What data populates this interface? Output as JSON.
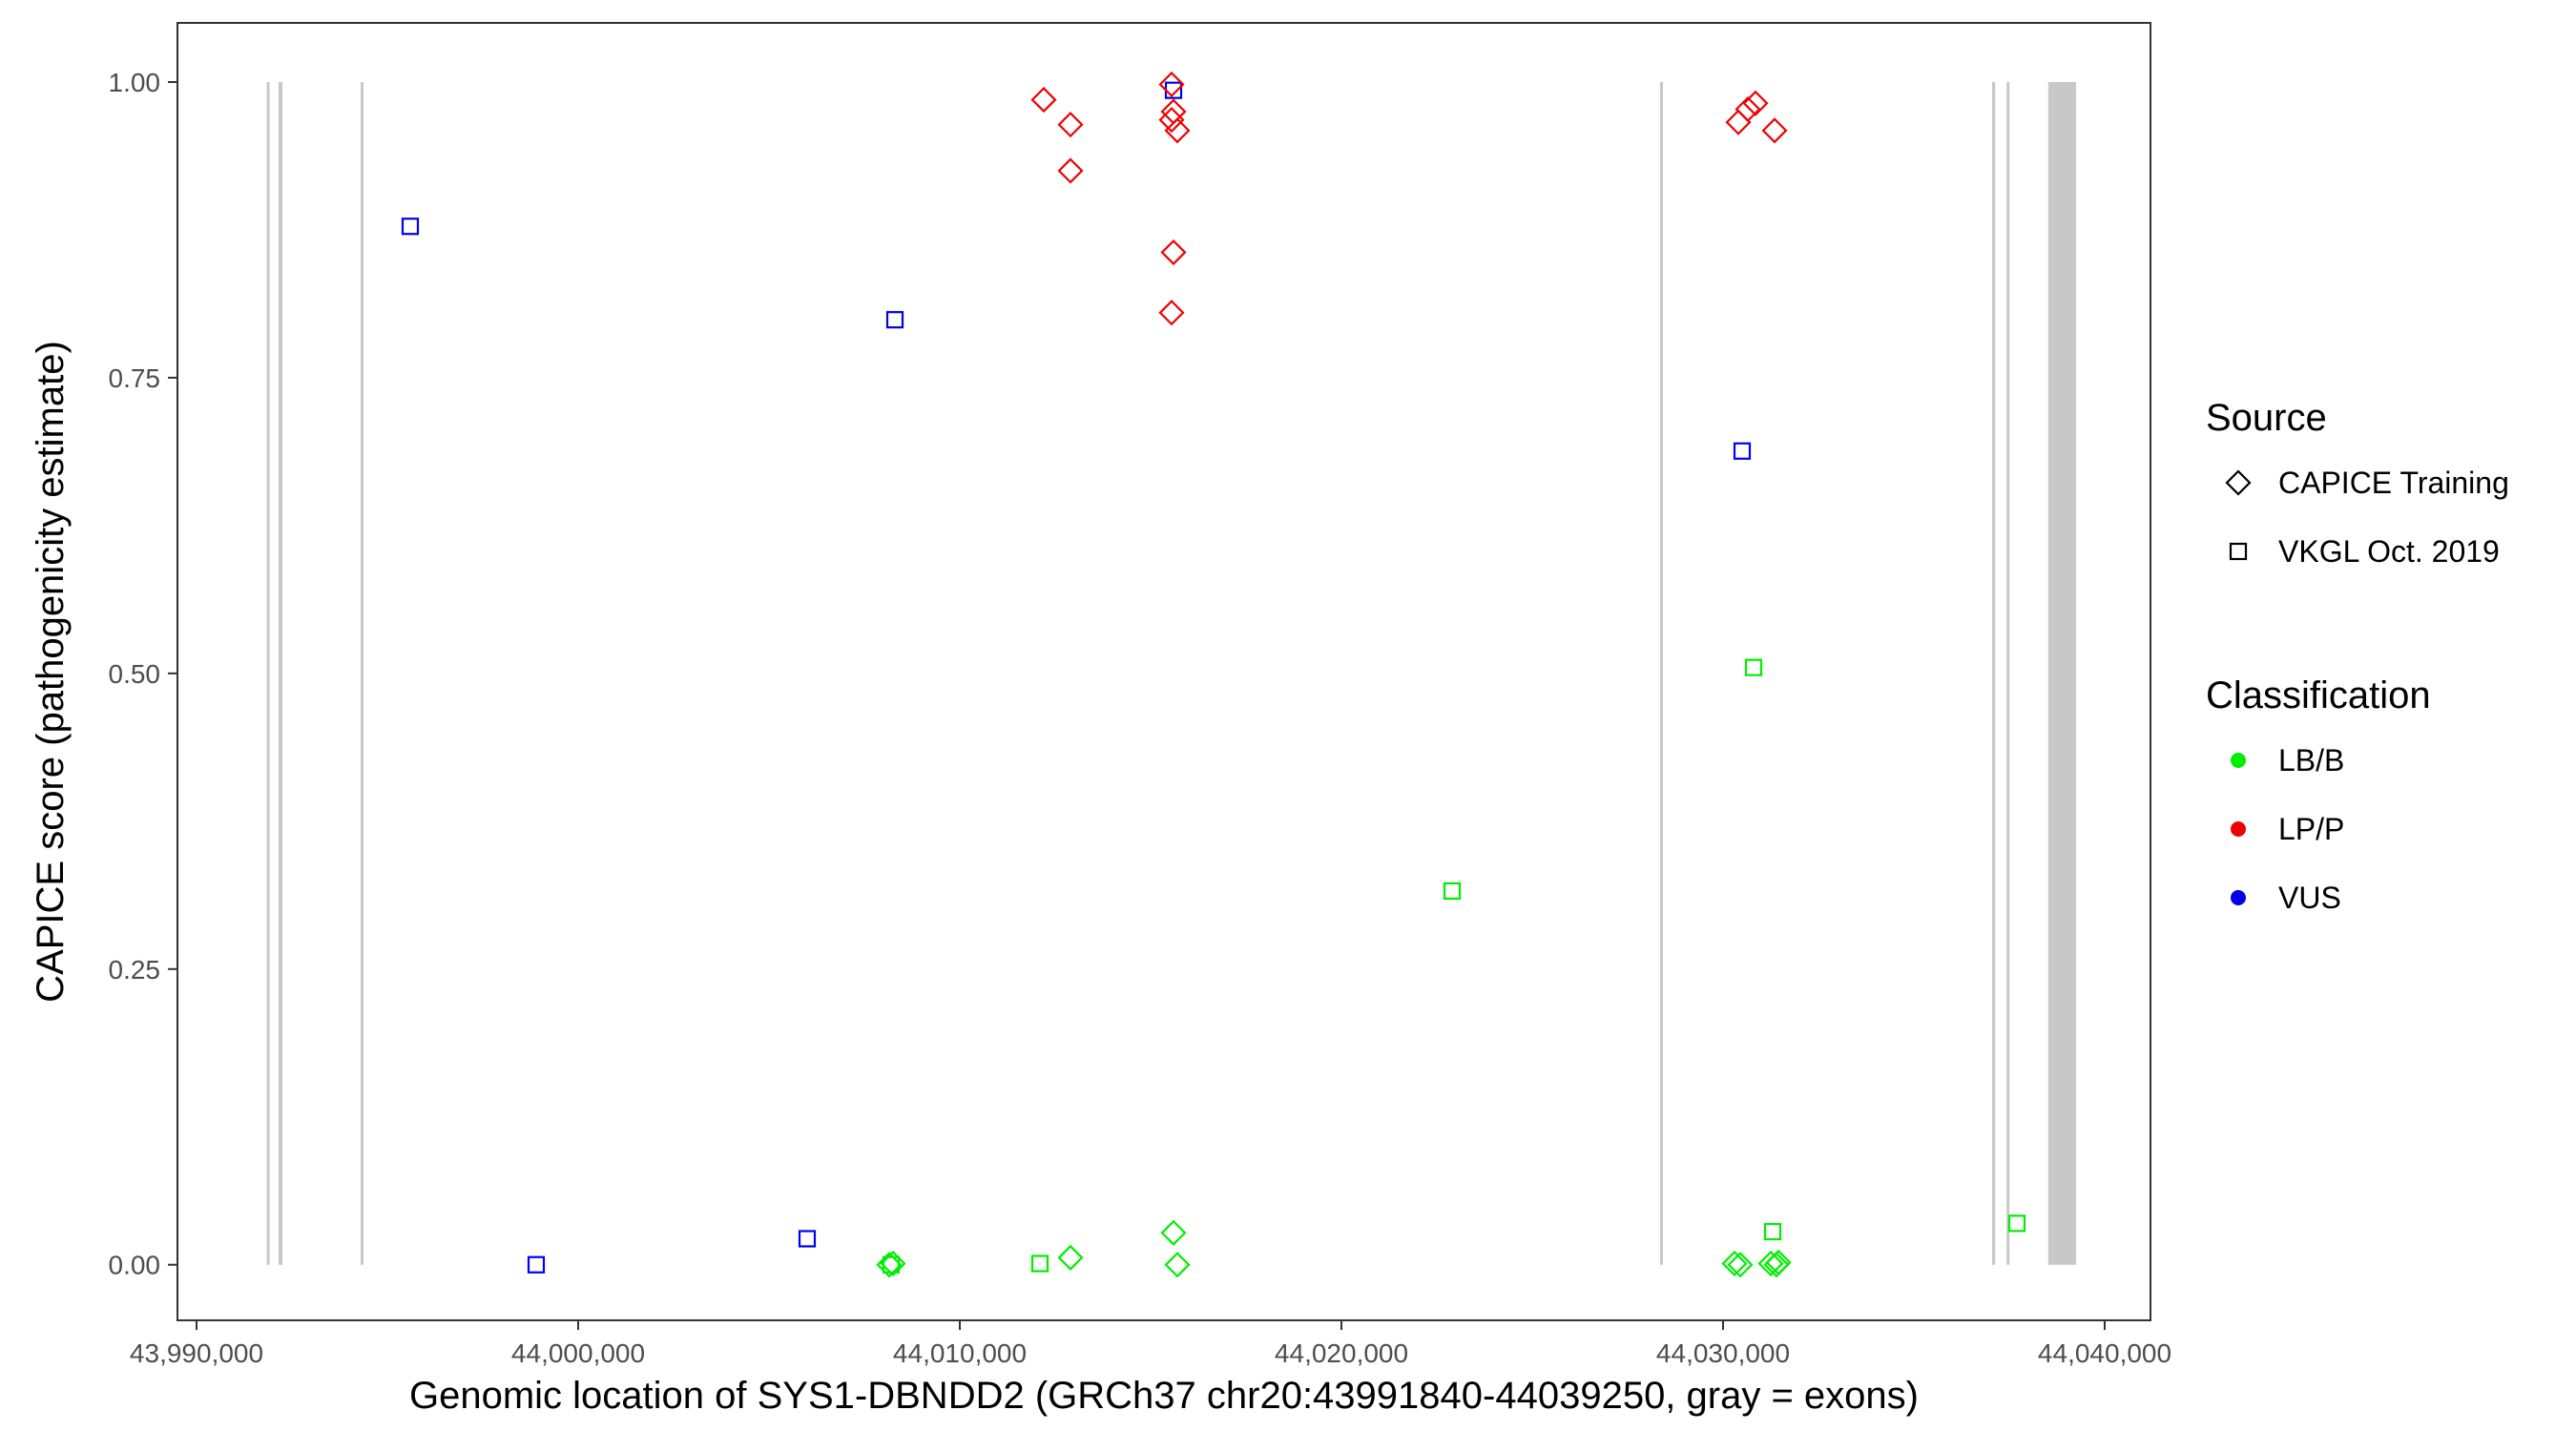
{
  "chart_data": {
    "type": "scatter",
    "xlabel": "Genomic location of SYS1-DBNDD2 (GRCh37 chr20:43991840-44039250, gray = exons)",
    "ylabel": "CAPICE score (pathogenicity estimate)",
    "xlim": [
      43989500,
      44041200
    ],
    "ylim": [
      -0.047,
      1.05
    ],
    "x_ticks": [
      43990000,
      44000000,
      44010000,
      44020000,
      44030000,
      44040000
    ],
    "x_tick_labels": [
      "43,990,000",
      "44,000,000",
      "44,010,000",
      "44,020,000",
      "44,030,000",
      "44,040,000"
    ],
    "y_ticks": [
      0,
      0.25,
      0.5,
      0.75,
      1.0
    ],
    "y_tick_labels": [
      "0.00",
      "0.25",
      "0.50",
      "0.75",
      "1.00"
    ],
    "grid": false,
    "exon_color": "#c8c8c8",
    "exons": [
      {
        "start": 43991840,
        "end": 43991900
      },
      {
        "start": 43992150,
        "end": 43992250
      },
      {
        "start": 43994300,
        "end": 43994360
      },
      {
        "start": 44028350,
        "end": 44028410
      },
      {
        "start": 44037050,
        "end": 44037130
      },
      {
        "start": 44037430,
        "end": 44037500
      },
      {
        "start": 44038520,
        "end": 44039250
      }
    ],
    "legend": {
      "position": "right",
      "source_title": "Source",
      "source_entries": [
        {
          "label": "CAPICE Training",
          "shape": "diamond"
        },
        {
          "label": "VKGL Oct. 2019",
          "shape": "square"
        }
      ],
      "classification_title": "Classification",
      "classification_entries": [
        {
          "label": "LB/B",
          "color": "#00ee00"
        },
        {
          "label": "LP/P",
          "color": "#ee0000"
        },
        {
          "label": "VUS",
          "color": "#0000ee"
        }
      ]
    },
    "series": [
      {
        "source": "VKGL Oct. 2019",
        "shape": "square",
        "points": [
          {
            "x": 43995600,
            "y": 0.878,
            "class": "VUS"
          },
          {
            "x": 43998900,
            "y": 0.0,
            "class": "VUS"
          },
          {
            "x": 44006000,
            "y": 0.022,
            "class": "VUS"
          },
          {
            "x": 44008300,
            "y": 0.799,
            "class": "VUS"
          },
          {
            "x": 44015600,
            "y": 0.993,
            "class": "VUS"
          },
          {
            "x": 44030500,
            "y": 0.688,
            "class": "VUS"
          },
          {
            "x": 44008200,
            "y": 0.0,
            "class": "LB/B"
          },
          {
            "x": 44012100,
            "y": 0.001,
            "class": "LB/B"
          },
          {
            "x": 44022900,
            "y": 0.316,
            "class": "LB/B"
          },
          {
            "x": 44030800,
            "y": 0.505,
            "class": "LB/B"
          },
          {
            "x": 44031300,
            "y": 0.028,
            "class": "LB/B"
          },
          {
            "x": 44037700,
            "y": 0.035,
            "class": "LB/B"
          }
        ]
      },
      {
        "source": "CAPICE Training",
        "shape": "diamond",
        "points": [
          {
            "x": 44012200,
            "y": 0.985,
            "class": "LP/P"
          },
          {
            "x": 44012900,
            "y": 0.964,
            "class": "LP/P"
          },
          {
            "x": 44012900,
            "y": 0.925,
            "class": "LP/P"
          },
          {
            "x": 44015550,
            "y": 0.998,
            "class": "LP/P"
          },
          {
            "x": 44015600,
            "y": 0.975,
            "class": "LP/P"
          },
          {
            "x": 44015550,
            "y": 0.968,
            "class": "LP/P"
          },
          {
            "x": 44015700,
            "y": 0.959,
            "class": "LP/P"
          },
          {
            "x": 44015600,
            "y": 0.856,
            "class": "LP/P"
          },
          {
            "x": 44015550,
            "y": 0.805,
            "class": "LP/P"
          },
          {
            "x": 44030400,
            "y": 0.966,
            "class": "LP/P"
          },
          {
            "x": 44030650,
            "y": 0.977,
            "class": "LP/P"
          },
          {
            "x": 44030850,
            "y": 0.982,
            "class": "LP/P"
          },
          {
            "x": 44031350,
            "y": 0.959,
            "class": "LP/P"
          },
          {
            "x": 44008150,
            "y": 0.0,
            "class": "LB/B"
          },
          {
            "x": 44008250,
            "y": 0.001,
            "class": "LB/B"
          },
          {
            "x": 44012900,
            "y": 0.006,
            "class": "LB/B"
          },
          {
            "x": 44015600,
            "y": 0.027,
            "class": "LB/B"
          },
          {
            "x": 44015700,
            "y": 0.0,
            "class": "LB/B"
          },
          {
            "x": 44030300,
            "y": 0.001,
            "class": "LB/B"
          },
          {
            "x": 44030450,
            "y": 0.0,
            "class": "LB/B"
          },
          {
            "x": 44031250,
            "y": 0.001,
            "class": "LB/B"
          },
          {
            "x": 44031400,
            "y": 0.0,
            "class": "LB/B"
          },
          {
            "x": 44031450,
            "y": 0.002,
            "class": "LB/B"
          }
        ]
      }
    ]
  }
}
